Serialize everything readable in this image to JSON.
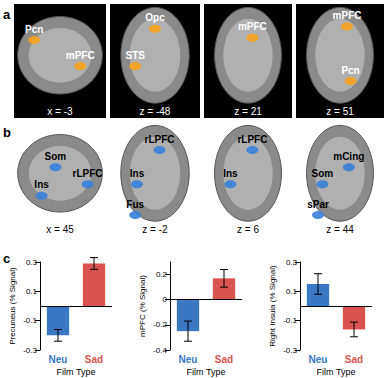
{
  "figure": {
    "panels": [
      {
        "letter": "a",
        "color": "#f7a21b",
        "images": [
          {
            "coord": "x = -3",
            "labels": [
              "Pcn",
              "mPFC"
            ]
          },
          {
            "coord": "z = -48",
            "labels": [
              "Opc",
              "STS"
            ]
          },
          {
            "coord": "z = 21",
            "labels": [
              "mPFC"
            ]
          },
          {
            "coord": "z = 51",
            "labels": [
              "mPFC",
              "Pcn"
            ]
          }
        ]
      },
      {
        "letter": "b",
        "color": "#3b7fd9",
        "images": [
          {
            "coord": "x = 45",
            "labels": [
              "Som",
              "Ins",
              "rLPFC"
            ]
          },
          {
            "coord": "z = -2",
            "labels": [
              "rLPFC",
              "Ins",
              "Fus"
            ]
          },
          {
            "coord": "z = 6",
            "labels": [
              "rLPFC",
              "Ins"
            ]
          },
          {
            "coord": "z = 44",
            "labels": [
              "mCing",
              "Som",
              "sPar"
            ]
          }
        ]
      },
      {
        "letter": "c"
      }
    ]
  },
  "chart_data": [
    {
      "type": "bar",
      "xlabel": "Film Type",
      "ylabel": "Precuneus (% Signal)",
      "categories": [
        "Neu",
        "Sad"
      ],
      "values": [
        -0.2,
        0.29
      ],
      "errors": [
        0.04,
        0.04
      ],
      "colors": [
        "#3b78c4",
        "#d9534f"
      ],
      "ylim": [
        -0.3,
        0.3
      ],
      "yticks": [
        -0.3,
        -0.1,
        0.1,
        0.3
      ]
    },
    {
      "type": "bar",
      "xlabel": "Film Type",
      "ylabel": "mPFC (% Signal)",
      "categories": [
        "Neu",
        "Sad"
      ],
      "values": [
        -0.25,
        0.17
      ],
      "errors": [
        0.08,
        0.07
      ],
      "colors": [
        "#3b78c4",
        "#d9534f"
      ],
      "ylim": [
        -0.4,
        0.3
      ],
      "yticks": [
        -0.4,
        -0.2,
        0,
        0.2
      ]
    },
    {
      "type": "bar",
      "xlabel": "Film Type",
      "ylabel": "Right Insula (% Signal)",
      "categories": [
        "Neu",
        "Sad"
      ],
      "values": [
        0.15,
        -0.16
      ],
      "errors": [
        0.07,
        0.05
      ],
      "colors": [
        "#3b78c4",
        "#d9534f"
      ],
      "ylim": [
        -0.3,
        0.3
      ],
      "yticks": [
        -0.3,
        -0.1,
        0.1,
        0.3
      ]
    }
  ]
}
